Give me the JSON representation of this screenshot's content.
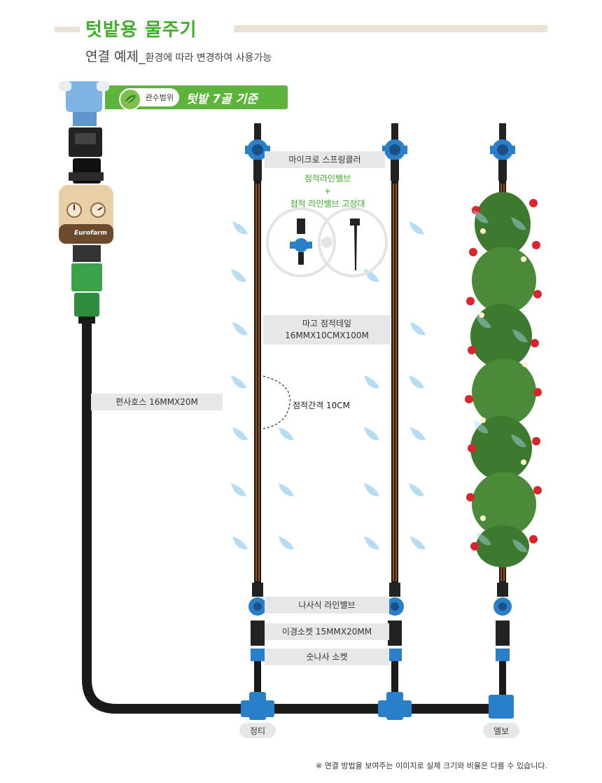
{
  "header": {
    "title": "텃밭용 물주기",
    "subtitle_main": "연결 예제_",
    "subtitle_small": "환경에 따라 변경하여 사용가능"
  },
  "banner": {
    "sub_label": "관수범위",
    "main_label": "텃밭 7골 기준"
  },
  "timer": {
    "brand": "Eurofarm"
  },
  "labels": {
    "sprinkler": "마이크로 스프링클러",
    "drip_valve": "점적라인밸브",
    "plus": "+",
    "drip_valve_holder": "점적 라인밸브 고정대",
    "drip_tape_line1": "마고 점적테잎",
    "drip_tape_line2": "16MMX10CMX100M",
    "hose": "편사호스 16MMX20M",
    "drip_spacing": "점적간격 10CM",
    "screw_valve": "나사식 라인밸브",
    "reducer_socket": "이경소켓 15MMX20MM",
    "male_socket": "숫나사 소켓",
    "tee": "정티",
    "elbow": "엘보"
  },
  "footnote": "※ 연결 방법을 보여주는 이미지로 실제 크기와 비율은 다를 수 있습니다.",
  "colors": {
    "title_green": "#3fae2a",
    "banner_green": "#5db43c",
    "pipe_black": "#1a1a1a",
    "fitting_blue": "#2a7fc9",
    "drip_orange": "#c8641e",
    "label_gray": "#e6e7e8",
    "water_blue": "#a9d7f2",
    "faucet_blue": "#7fb3e3",
    "timer_beige": "#e8cfa6",
    "timer_brown": "#6b4a2e",
    "connector_green": "#3aa24a"
  },
  "icons": [
    "faucet-icon",
    "timer-icon",
    "water-drop-icon",
    "sprinkler-icon",
    "stake-icon",
    "strawberry-plant-icon",
    "leaf-icon"
  ]
}
